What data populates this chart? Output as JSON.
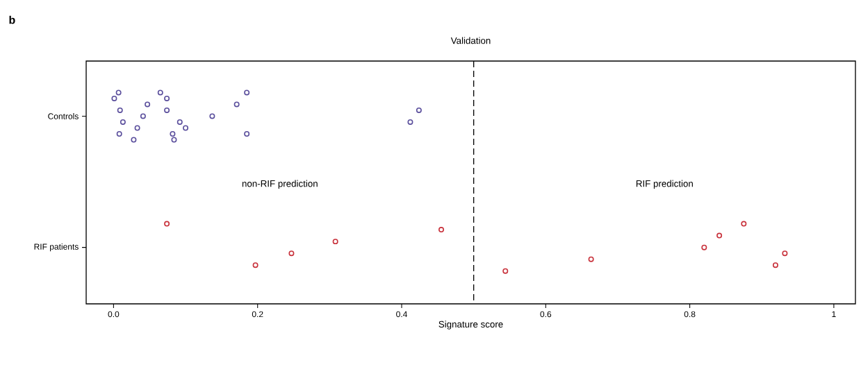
{
  "chart_data": {
    "type": "scatter",
    "orientation": "horizontal",
    "title": "Validation",
    "xlabel": "Signature score",
    "categories": [
      "Controls",
      "RIF patients"
    ],
    "series": [
      {
        "color": "#5a4e9c",
        "x": [
          "Controls",
          "Controls",
          "Controls",
          "Controls",
          "Controls",
          "Controls",
          "Controls",
          "Controls",
          "Controls",
          "Controls",
          "Controls",
          "Controls",
          "Controls",
          "Controls",
          "Controls",
          "Controls",
          "Controls",
          "Controls",
          "Controls",
          "Controls",
          "Controls",
          "Controls"
        ],
        "values": [
          0.007,
          0.008,
          0.013,
          0.009,
          0.001,
          0.028,
          0.033,
          0.041,
          0.047,
          0.065,
          0.082,
          0.092,
          0.074,
          0.074,
          0.084,
          0.1,
          0.137,
          0.171,
          0.185,
          0.185,
          0.412,
          0.424
        ]
      },
      {
        "color": "#c8303a",
        "x": [
          "RIF patients",
          "RIF patients",
          "RIF patients",
          "RIF patients",
          "RIF patients",
          "RIF patients",
          "RIF patients",
          "RIF patients",
          "RIF patients",
          "RIF patients",
          "RIF patients",
          "RIF patients"
        ],
        "values": [
          0.074,
          0.197,
          0.247,
          0.308,
          0.455,
          0.544,
          0.663,
          0.82,
          0.841,
          0.875,
          0.919,
          0.932
        ]
      }
    ],
    "xlim": [
      -0.038,
      1.03
    ],
    "xticks": [
      {
        "value": 0,
        "label": "0.0"
      },
      {
        "value": 0.2,
        "label": "0.2"
      },
      {
        "value": 0.4,
        "label": "0.4"
      },
      {
        "value": 0.6,
        "label": "0.6"
      },
      {
        "value": 0.8,
        "label": "0.8"
      },
      1
    ],
    "ref_lines": [
      {
        "axis": "x",
        "value": 0.5,
        "line_style": "dashed"
      }
    ],
    "annotations": [
      "b",
      "non-RIF prediction",
      "RIF prediction"
    ],
    "marker": "circle",
    "grid": false
  }
}
